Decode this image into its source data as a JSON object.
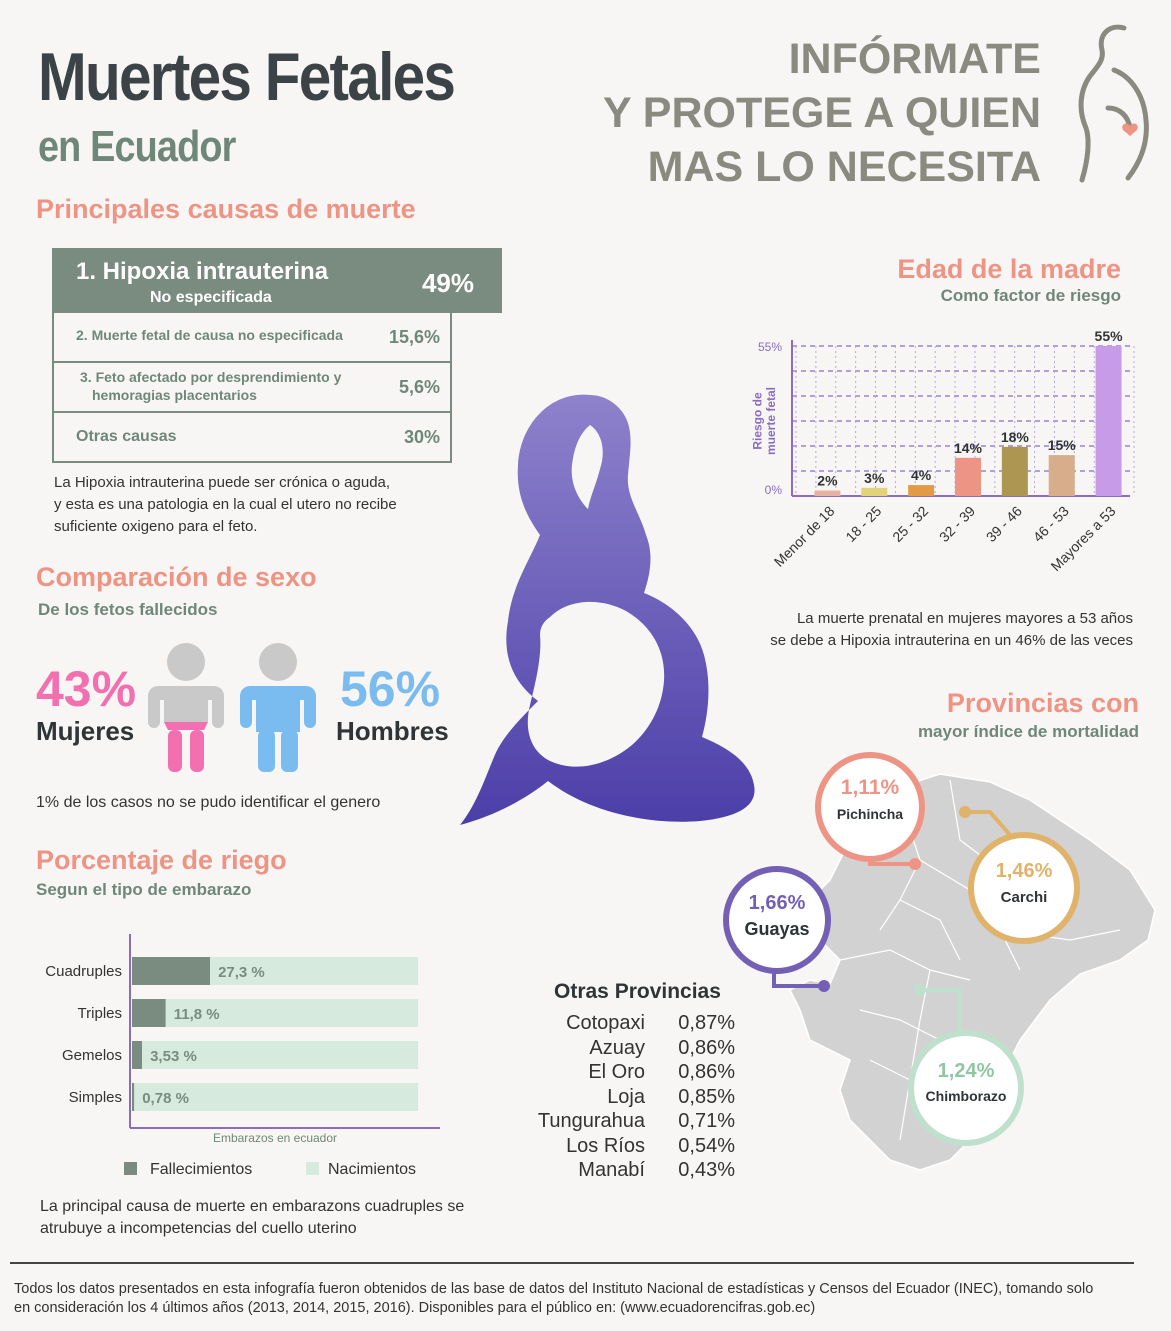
{
  "header": {
    "title": "Muertes Fetales",
    "subtitle": "en Ecuador",
    "slogan_lines": [
      "INFÓRMATE",
      "Y PROTEGE A QUIEN",
      "MAS LO NECESITA"
    ]
  },
  "causes": {
    "title": "Principales causas de muerte",
    "top": {
      "name": "1. Hipoxia intrauterina",
      "sub": "No especificada",
      "pct": "49%"
    },
    "rows": [
      {
        "label": "2. Muerte fetal de causa no especificada",
        "pct": "15,6%"
      },
      {
        "label": "3. Feto afectado por desprendimiento y",
        "label2": "hemoragias placentarios",
        "pct": "5,6%"
      },
      {
        "label": "Otras causas",
        "pct": "30%"
      }
    ],
    "note_lines": [
      "La Hipoxia intrauterina puede ser crónica o aguda,",
      "y esta es una patologia en la cual el utero no recibe",
      "suficiente oxigeno para el feto."
    ]
  },
  "sex": {
    "title": "Comparación de sexo",
    "subtitle": "De los fetos fallecidos",
    "female_pct": "43%",
    "female_label": "Mujeres",
    "male_pct": "56%",
    "male_label": "Hombres",
    "note": "1% de los casos no se pudo identificar el genero",
    "colors": {
      "female": "#f26fb0",
      "male": "#7bbcf0",
      "head": "#c9c9c9"
    }
  },
  "pregnancy": {
    "title": "Porcentaje de riego",
    "subtitle": "Segun el tipo de embarazo",
    "axis_label": "Embarazos en ecuador",
    "legend": {
      "deaths": "Fallecimientos",
      "births": "Nacimientos"
    },
    "note_lines": [
      "La principal causa de muerte en embarazons cuadruples se",
      "atrubuye a incompetencias del cuello uterino"
    ]
  },
  "age": {
    "title": "Edad de la madre",
    "subtitle": "Como factor de riesgo",
    "note_lines": [
      "La muerte prenatal en mujeres mayores a 53 años",
      "se debe a Hipoxia intrauterina en un 46% de las veces"
    ]
  },
  "provinces": {
    "title": "Provincias con",
    "subtitle": "mayor índice de mortalidad",
    "highlight": [
      {
        "name": "Pichincha",
        "value": "1,11%",
        "color": "#ee9484"
      },
      {
        "name": "Carchi",
        "value": "1,46%",
        "color": "#e0b26a"
      },
      {
        "name": "Guayas",
        "value": "1,66%",
        "color": "#7360b4"
      },
      {
        "name": "Chimborazo",
        "value": "1,24%",
        "color": "#bfe0cc"
      }
    ],
    "others_title": "Otras Provincias",
    "others": [
      {
        "name": "Cotopaxi",
        "value": "0,87%"
      },
      {
        "name": "Azuay",
        "value": "0,86%"
      },
      {
        "name": "El Oro",
        "value": "0,86%"
      },
      {
        "name": "Loja",
        "value": "0,85%"
      },
      {
        "name": "Tungurahua",
        "value": "0,71%"
      },
      {
        "name": "Los Ríos",
        "value": "0,54%"
      },
      {
        "name": "Manabí",
        "value": "0,43%"
      }
    ]
  },
  "footer": {
    "lines": [
      "Todos los datos presentados en esta infografía fueron obtenidos de las base de datos del Instituto Nacional de estadísticas y Censos del Ecuador (INEC), tomando solo",
      "en consideración los 4 últimos años (2013, 2014, 2015, 2016). Disponibles para el público en:  (www.ecuadorencifras.gob.ec)"
    ]
  },
  "chart_data": [
    {
      "type": "bar",
      "title": "Edad de la madre",
      "ylabel": "Riesgo de muerte fetal",
      "categories": [
        "Menor de 18",
        "18 - 25",
        "25 - 32",
        "32 - 39",
        "39 - 46",
        "46 - 53",
        "Mayores a 53"
      ],
      "values": [
        2,
        3,
        4,
        14,
        18,
        15,
        55
      ],
      "value_labels": [
        "2%",
        "3%",
        "4%",
        "14%",
        "18%",
        "15%",
        "55%"
      ],
      "colors": [
        "#e6b2a4",
        "#e2d27a",
        "#e29a45",
        "#ee9484",
        "#ad9552",
        "#d8ad8c",
        "#c79be8"
      ],
      "ylim": [
        0,
        55
      ],
      "ytick_labels": [
        "55%",
        "0%"
      ],
      "grid": true
    },
    {
      "type": "bar",
      "orientation": "horizontal",
      "title": "Porcentaje de riego",
      "xlabel": "Embarazos en ecuador",
      "categories": [
        "Cuadruples",
        "Triples",
        "Gemelos",
        "Simples"
      ],
      "series": [
        {
          "name": "Fallecimientos",
          "values": [
            27.3,
            11.8,
            3.53,
            0.78
          ],
          "color": "#7a8b80"
        },
        {
          "name": "Nacimientos",
          "values": [
            72.7,
            88.2,
            96.47,
            99.22
          ],
          "color": "#d6ebdd"
        }
      ],
      "value_labels": [
        "27,3 %",
        "11,8 %",
        "3,53 %",
        "0,78 %"
      ],
      "xlim": [
        0,
        100
      ],
      "legend": "bottom"
    }
  ]
}
